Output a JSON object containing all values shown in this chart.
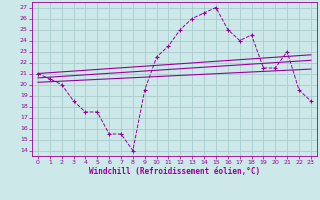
{
  "bg_color": "#cce8e8",
  "grid_color": "#aacccc",
  "line_color": "#990099",
  "xlabel": "Windchill (Refroidissement éolien,°C)",
  "xlim": [
    -0.5,
    23.5
  ],
  "ylim": [
    13.5,
    27.5
  ],
  "yticks": [
    14,
    15,
    16,
    17,
    18,
    19,
    20,
    21,
    22,
    23,
    24,
    25,
    26,
    27
  ],
  "xticks": [
    0,
    1,
    2,
    3,
    4,
    5,
    6,
    7,
    8,
    9,
    10,
    11,
    12,
    13,
    14,
    15,
    16,
    17,
    18,
    19,
    20,
    21,
    22,
    23
  ],
  "main_x": [
    0,
    1,
    2,
    3,
    4,
    5,
    6,
    7,
    8,
    9,
    10,
    11,
    12,
    13,
    14,
    15,
    16,
    17,
    18,
    19,
    20,
    21,
    22,
    23
  ],
  "main_y": [
    21,
    20.5,
    20.0,
    18.5,
    17.5,
    17.5,
    15.5,
    15.5,
    14.0,
    19.5,
    22.5,
    23.5,
    25.0,
    26.0,
    26.5,
    27.0,
    25.0,
    24.0,
    24.5,
    21.5,
    21.5,
    23.0,
    19.5,
    18.5
  ],
  "trend1_x": [
    0,
    23
  ],
  "trend1_y": [
    21.0,
    22.7
  ],
  "trend2_x": [
    0,
    23
  ],
  "trend2_y": [
    20.6,
    22.2
  ],
  "trend3_x": [
    0,
    23
  ],
  "trend3_y": [
    20.2,
    21.4
  ]
}
